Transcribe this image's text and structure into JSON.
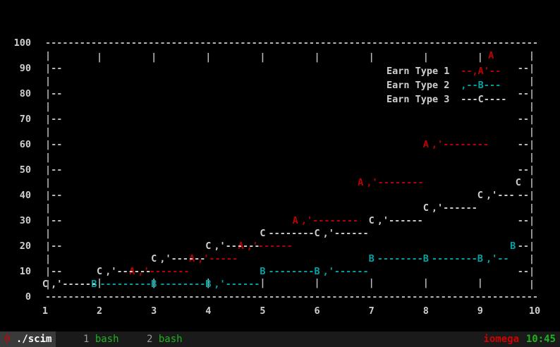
{
  "chart_data": {
    "type": "line",
    "title": "",
    "xlabel": "",
    "ylabel": "",
    "x": [
      1,
      2,
      3,
      4,
      5,
      6,
      7,
      8,
      9,
      10
    ],
    "xlim": [
      1,
      10
    ],
    "ylim": [
      0,
      100
    ],
    "yticks": [
      0,
      10,
      20,
      30,
      40,
      50,
      60,
      70,
      80,
      90,
      100
    ],
    "series": [
      {
        "name": "Earn Type 1",
        "marker": "A",
        "color": "#c00000",
        "points": [
          [
            2.6,
            10
          ],
          [
            3.7,
            15
          ],
          [
            4.6,
            20
          ],
          [
            5.6,
            30
          ],
          [
            6.8,
            45
          ],
          [
            8.0,
            60
          ],
          [
            9.2,
            95
          ]
        ]
      },
      {
        "name": "Earn Type 2",
        "marker": "B",
        "color": "#00a6a6",
        "points": [
          [
            1.9,
            5
          ],
          [
            3.0,
            5
          ],
          [
            4.0,
            5
          ],
          [
            5.0,
            10
          ],
          [
            6.0,
            10
          ],
          [
            7.0,
            15
          ],
          [
            8.0,
            15
          ],
          [
            9.0,
            15
          ],
          [
            9.6,
            20
          ]
        ]
      },
      {
        "name": "Earn Type 3",
        "marker": "C",
        "color": "#cfcfcf",
        "points": [
          [
            1.0,
            5
          ],
          [
            2.0,
            10
          ],
          [
            3.0,
            15
          ],
          [
            4.0,
            20
          ],
          [
            5.0,
            25
          ],
          [
            6.0,
            25
          ],
          [
            7.0,
            30
          ],
          [
            8.0,
            35
          ],
          [
            9.0,
            40
          ],
          [
            9.7,
            45
          ]
        ]
      }
    ],
    "legend_position": "top-right",
    "grid": false
  },
  "legend": [
    {
      "label": "Earn Type 1",
      "sample": "--,A'--"
    },
    {
      "label": "Earn Type 2",
      "sample": ",--B---"
    },
    {
      "label": "Earn Type 3",
      "sample": "---C----"
    }
  ],
  "statusbar": {
    "windows": [
      {
        "index": "0",
        "name": "./scim",
        "active": true
      },
      {
        "index": "1",
        "name": "bash",
        "active": false
      },
      {
        "index": "2",
        "name": "bash",
        "active": false
      }
    ],
    "host": "iomega",
    "time": "10:45"
  }
}
